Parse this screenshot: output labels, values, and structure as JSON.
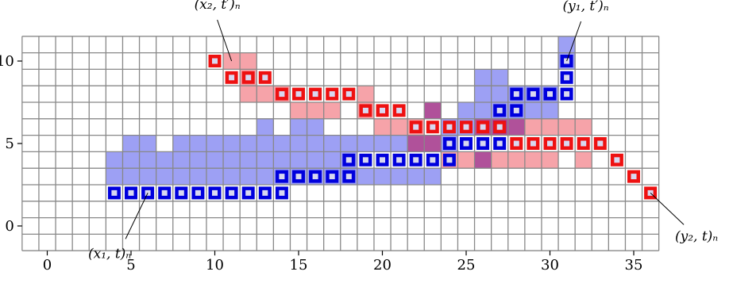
{
  "grid": {
    "x_range": [
      -1,
      36
    ],
    "y_range": [
      -1,
      11
    ],
    "x_ticks": [
      0,
      5,
      10,
      15,
      20,
      25,
      30,
      35
    ],
    "y_ticks": [
      0,
      5,
      10
    ]
  },
  "colors": {
    "grid_line": "#888888",
    "blue_fill": "#9da0f4",
    "blue_path": "#0000dd",
    "red_fill": "#f6a3a9",
    "red_path": "#ee1111",
    "overlap_fill": "#b0519a",
    "cell_inner": "#d8d8f0"
  },
  "blue_region": [
    [
      4,
      3
    ],
    [
      5,
      3
    ],
    [
      6,
      3
    ],
    [
      7,
      3
    ],
    [
      8,
      3
    ],
    [
      9,
      3
    ],
    [
      10,
      3
    ],
    [
      11,
      3
    ],
    [
      12,
      3
    ],
    [
      13,
      3
    ],
    [
      14,
      3
    ],
    [
      15,
      3
    ],
    [
      16,
      3
    ],
    [
      17,
      3
    ],
    [
      18,
      3
    ],
    [
      19,
      3
    ],
    [
      20,
      3
    ],
    [
      21,
      3
    ],
    [
      22,
      3
    ],
    [
      23,
      3
    ],
    [
      4,
      4
    ],
    [
      5,
      4
    ],
    [
      6,
      4
    ],
    [
      7,
      4
    ],
    [
      8,
      4
    ],
    [
      9,
      4
    ],
    [
      10,
      4
    ],
    [
      11,
      4
    ],
    [
      12,
      4
    ],
    [
      13,
      4
    ],
    [
      14,
      4
    ],
    [
      15,
      4
    ],
    [
      16,
      4
    ],
    [
      17,
      4
    ],
    [
      18,
      4
    ],
    [
      5,
      5
    ],
    [
      6,
      5
    ],
    [
      8,
      5
    ],
    [
      9,
      5
    ],
    [
      10,
      5
    ],
    [
      11,
      5
    ],
    [
      12,
      5
    ],
    [
      13,
      5
    ],
    [
      14,
      5
    ],
    [
      15,
      5
    ],
    [
      16,
      5
    ],
    [
      17,
      5
    ],
    [
      18,
      5
    ],
    [
      19,
      5
    ],
    [
      20,
      5
    ],
    [
      21,
      5
    ],
    [
      22,
      5
    ],
    [
      23,
      5
    ],
    [
      24,
      5
    ],
    [
      13,
      6
    ],
    [
      15,
      6
    ],
    [
      16,
      6
    ],
    [
      24,
      6
    ],
    [
      25,
      6
    ],
    [
      26,
      6
    ],
    [
      27,
      6
    ],
    [
      25,
      7
    ],
    [
      26,
      7
    ],
    [
      27,
      7
    ],
    [
      28,
      7
    ],
    [
      29,
      7
    ],
    [
      30,
      7
    ],
    [
      26,
      8
    ],
    [
      27,
      8
    ],
    [
      28,
      8
    ],
    [
      29,
      8
    ],
    [
      30,
      8
    ],
    [
      26,
      9
    ],
    [
      27,
      9
    ],
    [
      31,
      11
    ],
    [
      31,
      10
    ]
  ],
  "red_region": [
    [
      11,
      10
    ],
    [
      12,
      10
    ],
    [
      12,
      9
    ],
    [
      12,
      8
    ],
    [
      13,
      8
    ],
    [
      14,
      8
    ],
    [
      15,
      7
    ],
    [
      16,
      7
    ],
    [
      17,
      7
    ],
    [
      19,
      8
    ],
    [
      19,
      7
    ],
    [
      20,
      6
    ],
    [
      21,
      6
    ],
    [
      22,
      6
    ],
    [
      23,
      7
    ],
    [
      22,
      5
    ],
    [
      23,
      5
    ],
    [
      27,
      6
    ],
    [
      28,
      6
    ],
    [
      29,
      6
    ],
    [
      30,
      6
    ],
    [
      31,
      6
    ],
    [
      32,
      6
    ],
    [
      24,
      4
    ],
    [
      25,
      4
    ],
    [
      26,
      4
    ],
    [
      27,
      4
    ],
    [
      28,
      4
    ],
    [
      29,
      4
    ],
    [
      30,
      4
    ],
    [
      32,
      4
    ]
  ],
  "overlap_region": [
    [
      23,
      7
    ],
    [
      22,
      5
    ],
    [
      23,
      5
    ],
    [
      26,
      6
    ],
    [
      27,
      6
    ],
    [
      28,
      6
    ],
    [
      26,
      4
    ]
  ],
  "blue_path": [
    [
      4,
      2
    ],
    [
      5,
      2
    ],
    [
      6,
      2
    ],
    [
      7,
      2
    ],
    [
      8,
      2
    ],
    [
      9,
      2
    ],
    [
      10,
      2
    ],
    [
      11,
      2
    ],
    [
      12,
      2
    ],
    [
      13,
      2
    ],
    [
      14,
      2
    ],
    [
      14,
      3
    ],
    [
      15,
      3
    ],
    [
      16,
      3
    ],
    [
      17,
      3
    ],
    [
      18,
      3
    ],
    [
      18,
      4
    ],
    [
      19,
      4
    ],
    [
      20,
      4
    ],
    [
      21,
      4
    ],
    [
      22,
      4
    ],
    [
      23,
      4
    ],
    [
      24,
      4
    ],
    [
      24,
      5
    ],
    [
      25,
      5
    ],
    [
      26,
      5
    ],
    [
      27,
      5
    ],
    [
      27,
      6
    ],
    [
      27,
      7
    ],
    [
      28,
      7
    ],
    [
      28,
      8
    ],
    [
      29,
      8
    ],
    [
      30,
      8
    ],
    [
      31,
      8
    ],
    [
      31,
      9
    ],
    [
      31,
      10
    ]
  ],
  "red_path": [
    [
      10,
      10
    ],
    [
      11,
      9
    ],
    [
      12,
      9
    ],
    [
      13,
      9
    ],
    [
      14,
      8
    ],
    [
      15,
      8
    ],
    [
      16,
      8
    ],
    [
      17,
      8
    ],
    [
      18,
      8
    ],
    [
      19,
      7
    ],
    [
      20,
      7
    ],
    [
      21,
      7
    ],
    [
      22,
      6
    ],
    [
      23,
      6
    ],
    [
      24,
      6
    ],
    [
      25,
      6
    ],
    [
      26,
      6
    ],
    [
      27,
      6
    ],
    [
      28,
      5
    ],
    [
      29,
      5
    ],
    [
      30,
      5
    ],
    [
      31,
      5
    ],
    [
      32,
      5
    ],
    [
      33,
      5
    ],
    [
      34,
      4
    ],
    [
      35,
      3
    ],
    [
      36,
      2
    ]
  ],
  "annotations": [
    {
      "id": "x1-t",
      "label": "(x₁, t)ₙ",
      "cell": [
        6,
        2
      ],
      "anchor": "bottom-left"
    },
    {
      "id": "x2-tp",
      "label": "(x₂, t′)ₙ",
      "cell": [
        11,
        10
      ],
      "anchor": "top-left"
    },
    {
      "id": "y1-tp",
      "label": "(y₁, t′)ₙ",
      "cell": [
        31,
        10
      ],
      "anchor": "top-right"
    },
    {
      "id": "y2-t",
      "label": "(y₂, t)ₙ",
      "cell": [
        36,
        2
      ],
      "anchor": "bottom-right"
    }
  ]
}
